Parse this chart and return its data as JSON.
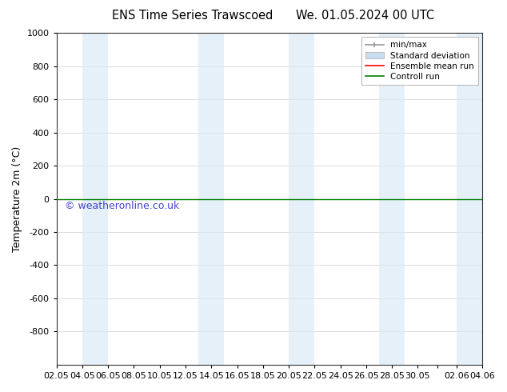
{
  "title_left": "ENS Time Series Trawscoed",
  "title_right": "We. 01.05.2024 00 UTC",
  "ylabel": "Temperature 2m (°C)",
  "watermark": "© weatheronline.co.uk",
  "ylim_top": -1000,
  "ylim_bottom": 1000,
  "yticks": [
    -800,
    -600,
    -400,
    -200,
    0,
    200,
    400,
    600,
    800,
    1000
  ],
  "bg_color": "#ffffff",
  "plot_bg_color": "#ffffff",
  "shade_color": "#daeaf7",
  "shade_alpha": 0.7,
  "grid_color": "#cccccc",
  "control_run_y": 0,
  "legend_labels": [
    "min/max",
    "Standard deviation",
    "Ensemble mean run",
    "Controll run"
  ],
  "legend_colors_hex": [
    "#aaaaaa",
    "#c8ddf0",
    "#ff0000",
    "#008000"
  ],
  "shade_bands": [
    [
      2,
      4
    ],
    [
      11,
      13
    ],
    [
      18,
      20
    ],
    [
      25,
      27
    ],
    [
      31,
      33
    ]
  ],
  "xtick_positions": [
    0,
    2,
    4,
    6,
    8,
    10,
    12,
    14,
    16,
    18,
    20,
    22,
    24,
    26,
    28,
    29.5,
    31,
    33
  ],
  "xtick_labels": [
    "02.05",
    "04.05",
    "06.05",
    "08.05",
    "10.05",
    "12.05",
    "14.05",
    "16.05",
    "18.05",
    "20.05",
    "22.05",
    "24.05",
    "26.05",
    "28.05",
    "30.05",
    "",
    "02.06",
    "04.06"
  ],
  "xmin": 0,
  "xmax": 33
}
